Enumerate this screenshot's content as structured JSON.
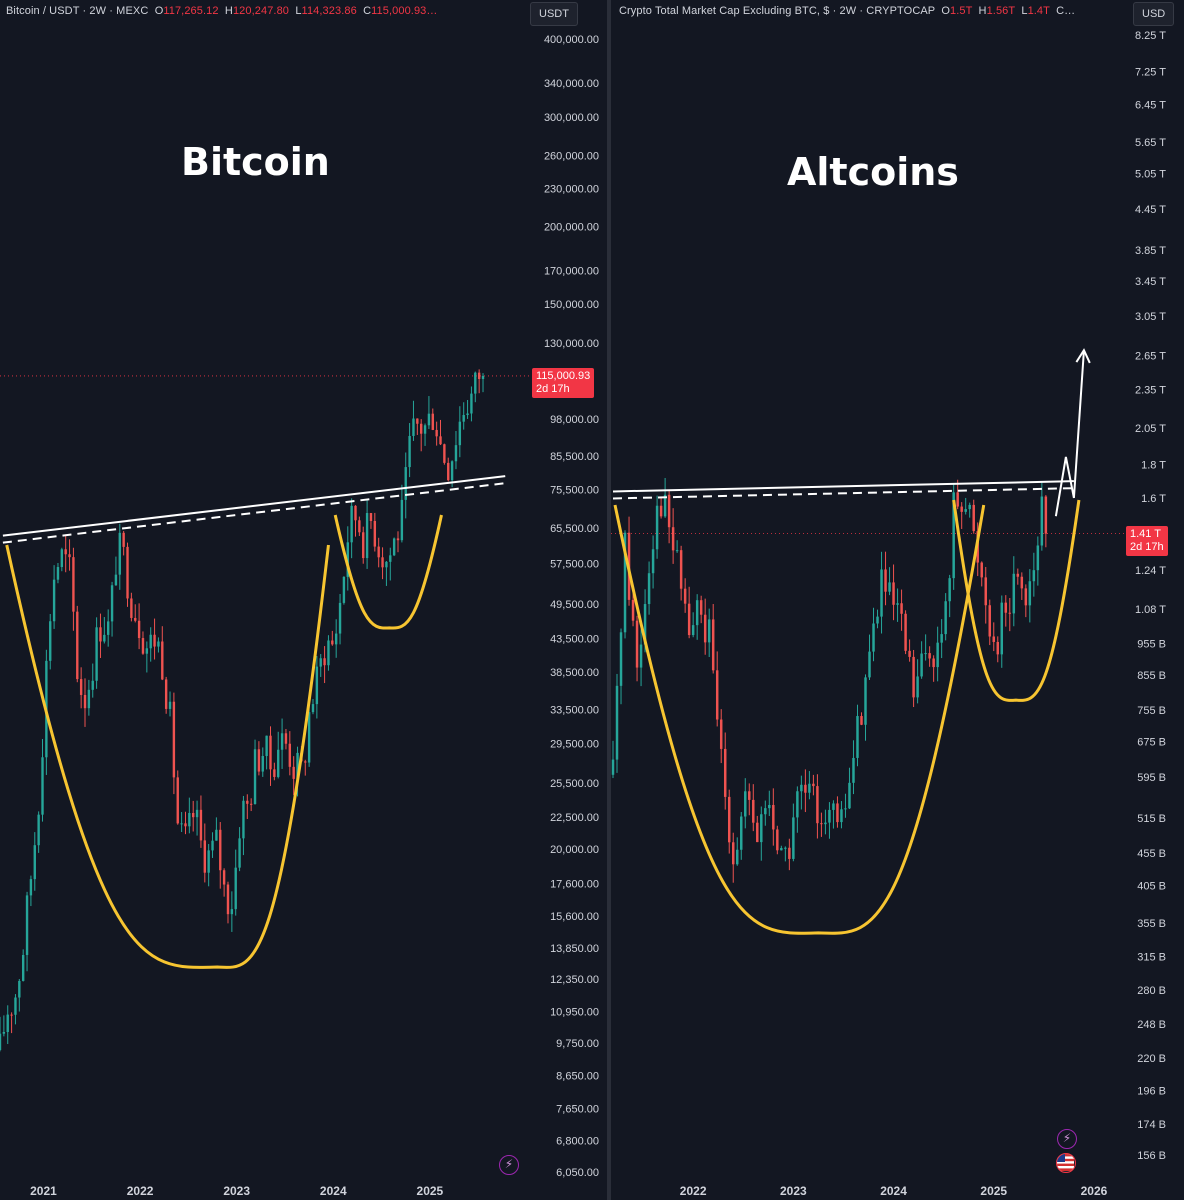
{
  "colors": {
    "background": "#131722",
    "up": "#26a69a",
    "down": "#ef5350",
    "cup_curve": "#f7c531",
    "trendline": "#ffffff",
    "price_tag": "#f23645"
  },
  "left": {
    "header": {
      "symbol": "Bitcoin / USDT · 2W · MEXC",
      "o_label": "O",
      "o_value": "117,265.12",
      "h_label": "H",
      "h_value": "120,247.80",
      "l_label": "L",
      "l_value": "114,323.86",
      "c_label": "C",
      "c_value": "115,000.93…"
    },
    "currency_badge": "USDT",
    "title": "Bitcoin",
    "price_tag": {
      "price": "115,000.93",
      "countdown": "2d 17h"
    },
    "icons": [
      "lightning-icon"
    ]
  },
  "right": {
    "header": {
      "symbol": "Crypto Total Market Cap Excluding BTC, $ · 2W · CRYPTOCAP",
      "o_label": "O",
      "o_value": "1.5T",
      "h_label": "H",
      "h_value": "1.56T",
      "l_label": "L",
      "l_value": "1.4T",
      "c_label": "C…",
      "c_value": ""
    },
    "currency_badge": "USD",
    "title": "Altcoins",
    "price_tag": {
      "price": "1.41 T",
      "countdown": "2d 17h"
    },
    "icons": [
      "lightning-icon",
      "us-flag-icon"
    ]
  },
  "chart_data": [
    {
      "type": "line",
      "title": "Bitcoin",
      "y_scale": "log",
      "ylim": [
        6050,
        400000
      ],
      "y_ticks": [
        {
          "label": "400,000.00",
          "value": 400000
        },
        {
          "label": "340,000.00",
          "value": 340000
        },
        {
          "label": "300,000.00",
          "value": 300000
        },
        {
          "label": "260,000.00",
          "value": 260000
        },
        {
          "label": "230,000.00",
          "value": 230000
        },
        {
          "label": "200,000.00",
          "value": 200000
        },
        {
          "label": "170,000.00",
          "value": 170000
        },
        {
          "label": "150,000.00",
          "value": 150000
        },
        {
          "label": "130,000.00",
          "value": 130000
        },
        {
          "label": "98,000.00",
          "value": 98000
        },
        {
          "label": "85,500.00",
          "value": 85500
        },
        {
          "label": "75,500.00",
          "value": 75500
        },
        {
          "label": "65,500.00",
          "value": 65500
        },
        {
          "label": "57,500.00",
          "value": 57500
        },
        {
          "label": "49,500.00",
          "value": 49500
        },
        {
          "label": "43,500.00",
          "value": 43500
        },
        {
          "label": "38,500.00",
          "value": 38500
        },
        {
          "label": "33,500.00",
          "value": 33500
        },
        {
          "label": "29,500.00",
          "value": 29500
        },
        {
          "label": "25,500.00",
          "value": 25500
        },
        {
          "label": "22,500.00",
          "value": 22500
        },
        {
          "label": "20,000.00",
          "value": 20000
        },
        {
          "label": "17,600.00",
          "value": 17600
        },
        {
          "label": "15,600.00",
          "value": 15600
        },
        {
          "label": "13,850.00",
          "value": 13850
        },
        {
          "label": "12,350.00",
          "value": 12350
        },
        {
          "label": "10,950.00",
          "value": 10950
        },
        {
          "label": "9,750.00",
          "value": 9750
        },
        {
          "label": "8,650.00",
          "value": 8650
        },
        {
          "label": "7,650.00",
          "value": 7650
        },
        {
          "label": "6,800.00",
          "value": 6800
        },
        {
          "label": "6,050.00",
          "value": 6050
        }
      ],
      "x_ticks": [
        {
          "label": "2021",
          "value": 2021.0
        },
        {
          "label": "2022",
          "value": 2022.0
        },
        {
          "label": "2023",
          "value": 2023.0
        },
        {
          "label": "2024",
          "value": 2024.0
        },
        {
          "label": "2025",
          "value": 2025.0
        }
      ],
      "xlim": [
        2020.55,
        2025.85
      ],
      "series": [
        {
          "x": [
            2020.55,
            2020.62,
            2020.7,
            2020.78,
            2020.86,
            2020.94,
            2021.0,
            2021.05,
            2021.12,
            2021.2,
            2021.28,
            2021.36,
            2021.44,
            2021.52,
            2021.6,
            2021.68,
            2021.76,
            2021.84,
            2021.92,
            2022.0,
            2022.08,
            2022.16,
            2022.24,
            2022.32,
            2022.4,
            2022.48,
            2022.56,
            2022.64,
            2022.72,
            2022.8,
            2022.88,
            2022.96,
            2023.04,
            2023.12,
            2023.2,
            2023.28,
            2023.36,
            2023.44,
            2023.52,
            2023.6,
            2023.68,
            2023.76,
            2023.84,
            2023.92,
            2024.0,
            2024.08,
            2024.16,
            2024.24,
            2024.32,
            2024.4,
            2024.48,
            2024.56,
            2024.64,
            2024.72,
            2024.8,
            2024.88,
            2024.96,
            2025.04,
            2025.12,
            2025.2,
            2025.28,
            2025.36,
            2025.44,
            2025.52,
            2025.58
          ],
          "values": [
            9500,
            11000,
            11500,
            13500,
            17500,
            23000,
            32000,
            45000,
            57000,
            59000,
            55000,
            37000,
            35000,
            41000,
            47000,
            45000,
            61000,
            58000,
            50000,
            46000,
            42000,
            44000,
            40000,
            31000,
            21000,
            20500,
            23000,
            20000,
            19500,
            20500,
            16800,
            16600,
            23000,
            23500,
            28000,
            29000,
            27000,
            30000,
            29500,
            27000,
            26500,
            34000,
            37500,
            43000,
            42500,
            51000,
            66000,
            69000,
            63000,
            68000,
            61000,
            58000,
            63000,
            69000,
            91000,
            96000,
            95000,
            102000,
            88000,
            83000,
            94000,
            104000,
            107000,
            117500,
            115000
          ]
        }
      ],
      "annotations": [
        {
          "type": "trendline",
          "from": [
            2020.58,
            63000
          ],
          "to": [
            2025.78,
            78500
          ]
        },
        {
          "type": "cup_curve",
          "label": "large cup",
          "from_x": 2020.62,
          "bottom": [
            2022.8,
            13400
          ],
          "to_x": 2023.95
        },
        {
          "type": "cup_curve",
          "label": "handle",
          "from_x": 2024.02,
          "bottom": [
            2024.58,
            47000
          ],
          "to_x": 2025.12
        }
      ]
    },
    {
      "type": "line",
      "title": "Altcoins",
      "y_scale": "log",
      "ylim": [
        156000000000.0,
        8250000000000.0
      ],
      "y_ticks": [
        {
          "label": "8.25 T",
          "value": 8250000000000.0
        },
        {
          "label": "7.25 T",
          "value": 7250000000000.0
        },
        {
          "label": "6.45 T",
          "value": 6450000000000.0
        },
        {
          "label": "5.65 T",
          "value": 5650000000000.0
        },
        {
          "label": "5.05 T",
          "value": 5050000000000.0
        },
        {
          "label": "4.45 T",
          "value": 4450000000000.0
        },
        {
          "label": "3.85 T",
          "value": 3850000000000.0
        },
        {
          "label": "3.45 T",
          "value": 3450000000000.0
        },
        {
          "label": "3.05 T",
          "value": 3050000000000.0
        },
        {
          "label": "2.65 T",
          "value": 2650000000000.0
        },
        {
          "label": "2.35 T",
          "value": 2350000000000.0
        },
        {
          "label": "2.05 T",
          "value": 2050000000000.0
        },
        {
          "label": "1.8 T",
          "value": 1800000000000.0
        },
        {
          "label": "1.6 T",
          "value": 1600000000000.0
        },
        {
          "label": "1.24 T",
          "value": 1240000000000.0
        },
        {
          "label": "1.08 T",
          "value": 1080000000000.0
        },
        {
          "label": "955 B",
          "value": 955000000000.0
        },
        {
          "label": "855 B",
          "value": 855000000000.0
        },
        {
          "label": "755 B",
          "value": 755000000000.0
        },
        {
          "label": "675 B",
          "value": 675000000000.0
        },
        {
          "label": "595 B",
          "value": 595000000000.0
        },
        {
          "label": "515 B",
          "value": 515000000000.0
        },
        {
          "label": "455 B",
          "value": 455000000000.0
        },
        {
          "label": "405 B",
          "value": 405000000000.0
        },
        {
          "label": "355 B",
          "value": 355000000000.0
        },
        {
          "label": "315 B",
          "value": 315000000000.0
        },
        {
          "label": "280 B",
          "value": 280000000000.0
        },
        {
          "label": "248 B",
          "value": 248000000000.0
        },
        {
          "label": "220 B",
          "value": 220000000000.0
        },
        {
          "label": "196 B",
          "value": 196000000000.0
        },
        {
          "label": "174 B",
          "value": 174000000000.0
        },
        {
          "label": "156 B",
          "value": 156000000000.0
        }
      ],
      "x_ticks": [
        {
          "label": "2022",
          "value": 2022.0
        },
        {
          "label": "2023",
          "value": 2023.0
        },
        {
          "label": "2024",
          "value": 2024.0
        },
        {
          "label": "2025",
          "value": 2025.0
        },
        {
          "label": "2026",
          "value": 2026.0
        }
      ],
      "xlim": [
        2021.18,
        2026.25
      ],
      "series": [
        {
          "x": [
            2021.2,
            2021.26,
            2021.32,
            2021.38,
            2021.44,
            2021.5,
            2021.56,
            2021.62,
            2021.68,
            2021.74,
            2021.8,
            2021.86,
            2021.92,
            2021.98,
            2022.04,
            2022.1,
            2022.16,
            2022.22,
            2022.28,
            2022.34,
            2022.4,
            2022.46,
            2022.52,
            2022.58,
            2022.64,
            2022.7,
            2022.76,
            2022.82,
            2022.88,
            2022.94,
            2023.0,
            2023.08,
            2023.16,
            2023.24,
            2023.32,
            2023.4,
            2023.48,
            2023.56,
            2023.64,
            2023.72,
            2023.8,
            2023.88,
            2023.96,
            2024.04,
            2024.12,
            2024.2,
            2024.28,
            2024.36,
            2024.44,
            2024.52,
            2024.6,
            2024.68,
            2024.76,
            2024.84,
            2024.92,
            2025.0,
            2025.08,
            2025.16,
            2025.24,
            2025.32,
            2025.4,
            2025.48,
            2025.54
          ],
          "values": [
            600000000000.0,
            950000000000.0,
            1350000000000.0,
            1100000000000.0,
            880000000000.0,
            1050000000000.0,
            1300000000000.0,
            1500000000000.0,
            1620000000000.0,
            1480000000000.0,
            1350000000000.0,
            1200000000000.0,
            1100000000000.0,
            950000000000.0,
            1100000000000.0,
            1000000000000.0,
            980000000000.0,
            750000000000.0,
            640000000000.0,
            540000000000.0,
            460000000000.0,
            490000000000.0,
            550000000000.0,
            500000000000.0,
            480000000000.0,
            540000000000.0,
            530000000000.0,
            490000000000.0,
            460000000000.0,
            440000000000.0,
            520000000000.0,
            560000000000.0,
            550000000000.0,
            530000000000.0,
            540000000000.0,
            510000000000.0,
            500000000000.0,
            590000000000.0,
            700000000000.0,
            850000000000.0,
            1000000000000.0,
            1200000000000.0,
            1100000000000.0,
            1050000000000.0,
            930000000000.0,
            800000000000.0,
            870000000000.0,
            950000000000.0,
            920000000000.0,
            1050000000000.0,
            1550000000000.0,
            1650000000000.0,
            1500000000000.0,
            1300000000000.0,
            1150000000000.0,
            950000000000.0,
            1050000000000.0,
            1100000000000.0,
            1250000000000.0,
            1150000000000.0,
            1280000000000.0,
            1500000000000.0,
            1410000000000.0
          ]
        }
      ],
      "annotations": [
        {
          "type": "trendline",
          "from": [
            2021.2,
            1620000000000.0
          ],
          "to": [
            2025.8,
            1680000000000.0
          ]
        },
        {
          "type": "cup_curve",
          "label": "large cup",
          "from_x": 2021.22,
          "bottom": [
            2023.25,
            355000000000.0
          ],
          "to_x": 2024.9
        },
        {
          "type": "cup_curve",
          "label": "handle",
          "from_x": 2024.6,
          "bottom": [
            2025.22,
            810000000000.0
          ],
          "to_x": 2025.85
        },
        {
          "type": "projection_arrow",
          "points": [
            [
              2025.62,
              1500000000000.0
            ],
            [
              2025.72,
              1850000000000.0
            ],
            [
              2025.8,
              1600000000000.0
            ],
            [
              2025.9,
              2700000000000.0
            ]
          ]
        }
      ]
    }
  ]
}
